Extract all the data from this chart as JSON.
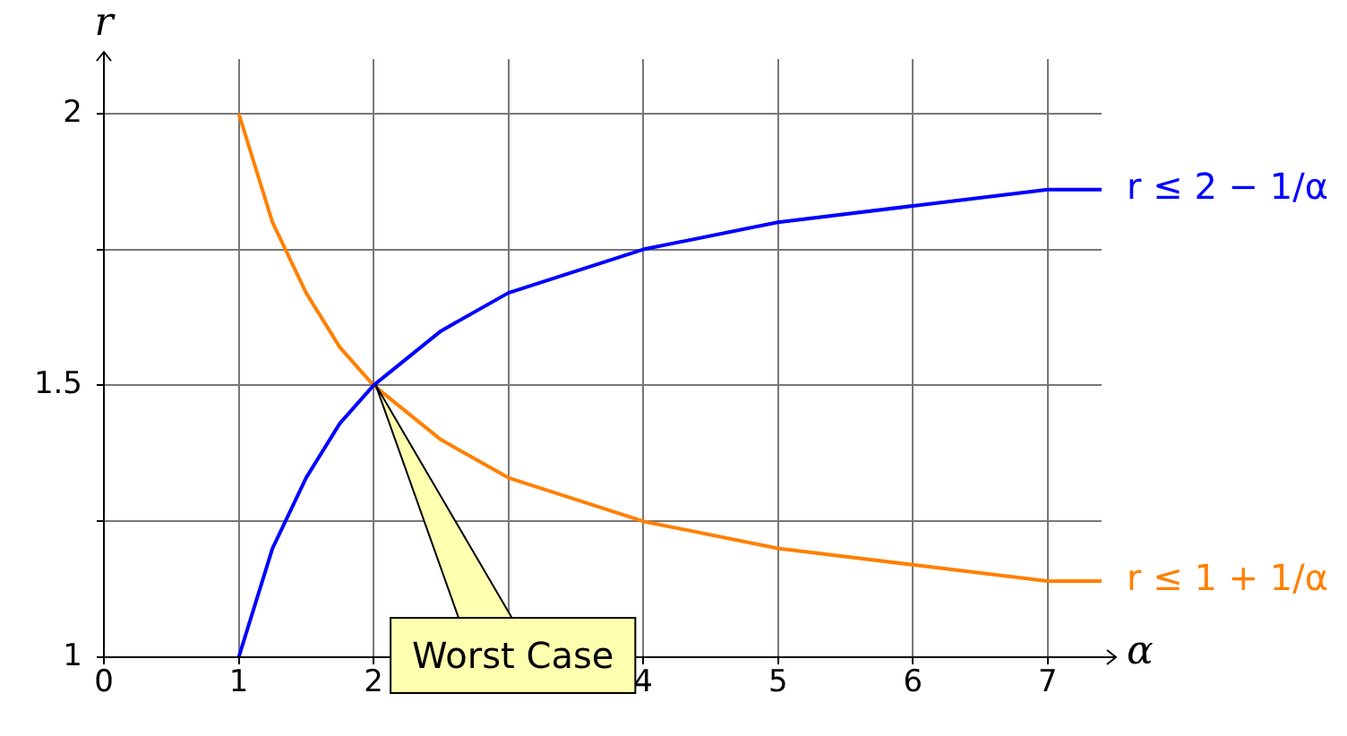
{
  "chart_data": {
    "type": "line",
    "xlabel": "α",
    "ylabel": "r",
    "x": [
      1,
      1.25,
      1.5,
      1.75,
      2,
      2.5,
      3,
      3.5,
      4,
      5,
      6,
      7,
      7.4
    ],
    "series": [
      {
        "name": "r ≤ 2 − 1/α",
        "color": "#0000ff",
        "values": [
          1,
          1.2,
          1.33,
          1.43,
          1.5,
          1.6,
          1.67,
          1.71,
          1.75,
          1.8,
          1.83,
          1.86,
          1.86
        ]
      },
      {
        "name": "r ≤ 1 + 1/α",
        "color": "#ff8000",
        "values": [
          2,
          1.8,
          1.67,
          1.57,
          1.5,
          1.4,
          1.33,
          1.29,
          1.25,
          1.2,
          1.17,
          1.14,
          1.14
        ]
      }
    ],
    "xlim": [
      0,
      7.4
    ],
    "ylim": [
      1,
      2.1
    ],
    "xticks": [
      0,
      1,
      2,
      {
        "value": 3,
        "label": null
      },
      4,
      5,
      6,
      7
    ],
    "yticks": [
      1,
      {
        "value": 1.25,
        "label": null
      },
      1.5,
      {
        "value": 1.75,
        "label": null
      },
      2
    ],
    "grid": true,
    "legend": false,
    "marker": "none",
    "line_style": "solid",
    "annotations": [
      "Worst Case"
    ]
  }
}
